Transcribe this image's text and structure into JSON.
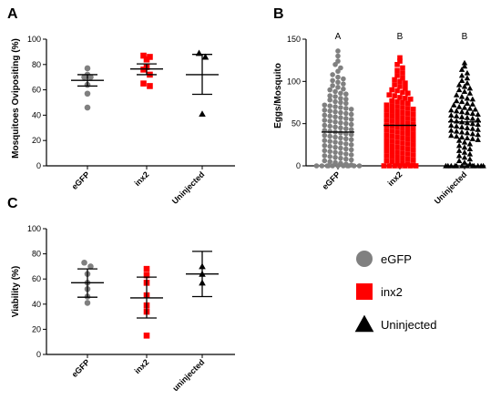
{
  "chart_data": [
    {
      "panel": "A",
      "type": "scatter",
      "ylabel": "Mosquitoes Ovipositing (%)",
      "ylim": [
        0,
        100
      ],
      "yticks": [
        0,
        20,
        40,
        60,
        80,
        100
      ],
      "categories": [
        "eGFP",
        "inx2",
        "Uninjected"
      ],
      "series": [
        {
          "category": "eGFP",
          "marker": "circle",
          "color": "#808080",
          "values": [
            77,
            72,
            70,
            70,
            64,
            57,
            46
          ],
          "mean": 67.5,
          "err_low": 63,
          "err_high": 72
        },
        {
          "category": "inx2",
          "marker": "square",
          "color": "#ff0000",
          "values": [
            87,
            86,
            84,
            78,
            76,
            72,
            65,
            63
          ],
          "mean": 76.5,
          "err_low": 72,
          "err_high": 80.5
        },
        {
          "category": "Uninjected",
          "marker": "triangle",
          "color": "#000000",
          "values": [
            89,
            86,
            41
          ],
          "mean": 72,
          "err_low": 56.5,
          "err_high": 88
        }
      ]
    },
    {
      "panel": "B",
      "type": "scatter",
      "ylabel": "Eggs/Mosquito",
      "ylim": [
        0,
        150
      ],
      "yticks": [
        0,
        50,
        100,
        150
      ],
      "categories": [
        "eGFP",
        "inx2",
        "Uninjected"
      ],
      "significance": [
        "A",
        "B",
        "B"
      ],
      "series": [
        {
          "category": "eGFP",
          "marker": "circle",
          "color": "#808080",
          "mean": 40,
          "values": [
            136,
            130,
            124,
            120,
            116,
            112,
            108,
            105,
            103,
            101,
            99,
            97,
            95,
            93,
            91,
            90,
            88,
            86,
            85,
            83,
            82,
            80,
            79,
            78,
            76,
            75,
            74,
            72,
            71,
            70,
            69,
            68,
            67,
            66,
            65,
            64,
            63,
            62,
            61,
            60,
            59,
            58,
            57,
            56,
            55,
            54,
            53,
            52,
            51,
            50,
            49,
            48,
            47,
            46,
            45,
            44,
            43,
            42,
            41,
            40,
            39,
            38,
            37,
            36,
            35,
            34,
            33,
            32,
            31,
            30,
            29,
            28,
            27,
            26,
            25,
            24,
            23,
            22,
            21,
            20,
            19,
            18,
            17,
            16,
            15,
            14,
            13,
            12,
            11,
            10,
            9,
            8,
            7,
            6,
            5,
            4,
            3,
            2,
            1,
            0,
            0,
            0,
            0,
            0,
            0,
            0,
            0,
            0,
            0,
            0
          ]
        },
        {
          "category": "inx2",
          "marker": "square",
          "color": "#ff0000",
          "mean": 48,
          "values": [
            128,
            124,
            120,
            116,
            113,
            110,
            107,
            104,
            102,
            100,
            98,
            96,
            94,
            92,
            90,
            89,
            87,
            86,
            84,
            83,
            81,
            80,
            79,
            77,
            76,
            75,
            74,
            72,
            71,
            70,
            69,
            68,
            67,
            66,
            65,
            64,
            63,
            62,
            61,
            60,
            59,
            58,
            57,
            56,
            55,
            54,
            53,
            52,
            51,
            50,
            49,
            48,
            47,
            46,
            45,
            44,
            43,
            42,
            41,
            40,
            39,
            38,
            37,
            36,
            35,
            34,
            33,
            32,
            31,
            30,
            29,
            28,
            27,
            26,
            25,
            24,
            23,
            22,
            21,
            20,
            19,
            18,
            17,
            16,
            15,
            14,
            13,
            12,
            11,
            10,
            9,
            8,
            7,
            6,
            5,
            4,
            3,
            2,
            1,
            0,
            0,
            0,
            0,
            0,
            0,
            0
          ]
        },
        {
          "category": "Uninjected",
          "marker": "triangle",
          "color": "#000000",
          "mean": 52,
          "values": [
            122,
            118,
            114,
            110,
            107,
            104,
            101,
            98,
            96,
            94,
            92,
            90,
            88,
            86,
            84,
            82,
            80,
            79,
            77,
            76,
            74,
            73,
            72,
            70,
            69,
            68,
            67,
            66,
            65,
            64,
            63,
            62,
            61,
            60,
            59,
            58,
            57,
            56,
            55,
            54,
            53,
            52,
            51,
            50,
            49,
            48,
            47,
            46,
            45,
            44,
            43,
            42,
            41,
            40,
            39,
            38,
            37,
            36,
            35,
            34,
            33,
            32,
            31,
            30,
            28,
            26,
            24,
            22,
            20,
            18,
            16,
            14,
            12,
            10,
            8,
            6,
            4,
            2,
            0,
            0,
            0,
            0,
            0,
            0,
            0,
            0,
            0,
            0,
            0,
            0
          ]
        }
      ]
    },
    {
      "panel": "C",
      "type": "scatter",
      "ylabel": "Viability (%)",
      "ylim": [
        0,
        100
      ],
      "yticks": [
        0,
        20,
        40,
        60,
        80,
        100
      ],
      "categories": [
        "eGFP",
        "inx2",
        "uninjected"
      ],
      "series": [
        {
          "category": "eGFP",
          "marker": "circle",
          "color": "#808080",
          "values": [
            73,
            70,
            64,
            57,
            52,
            46,
            41
          ],
          "mean": 57,
          "err_low": 45.5,
          "err_high": 68
        },
        {
          "category": "inx2",
          "marker": "square",
          "color": "#ff0000",
          "values": [
            68,
            63,
            57,
            47,
            39,
            34,
            15
          ],
          "mean": 45,
          "err_low": 29,
          "err_high": 61.5
        },
        {
          "category": "uninjected",
          "marker": "triangle",
          "color": "#000000",
          "values": [
            70,
            64,
            57
          ],
          "mean": 64,
          "err_low": 46,
          "err_high": 82
        }
      ]
    }
  ],
  "legend": [
    {
      "label": "eGFP",
      "marker": "circle",
      "color": "#808080"
    },
    {
      "label": "inx2",
      "marker": "square",
      "color": "#ff0000"
    },
    {
      "label": "Uninjected",
      "marker": "triangle",
      "color": "#000000"
    }
  ]
}
